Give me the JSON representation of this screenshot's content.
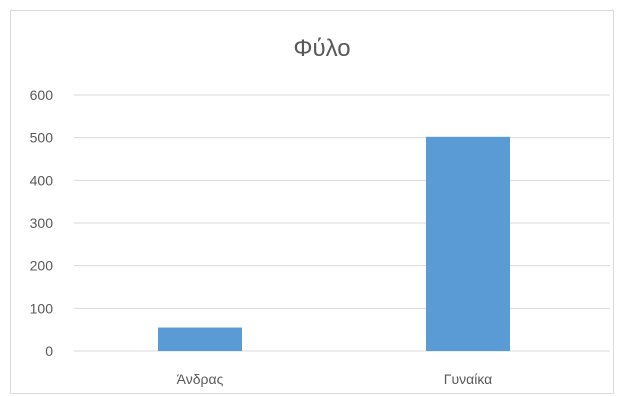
{
  "chart_data": {
    "type": "bar",
    "title": "Φύλο",
    "categories": [
      "Άνδρας",
      "Γυναίκα"
    ],
    "values": [
      55,
      502
    ],
    "ylim": [
      0,
      600
    ],
    "yticks": [
      "0",
      "100",
      "200",
      "300",
      "400",
      "500",
      "600"
    ],
    "grid": true,
    "legend": "none",
    "colors": {
      "bar": "#5b9bd5",
      "grid": "#d9d9d9",
      "text": "#595959"
    }
  }
}
